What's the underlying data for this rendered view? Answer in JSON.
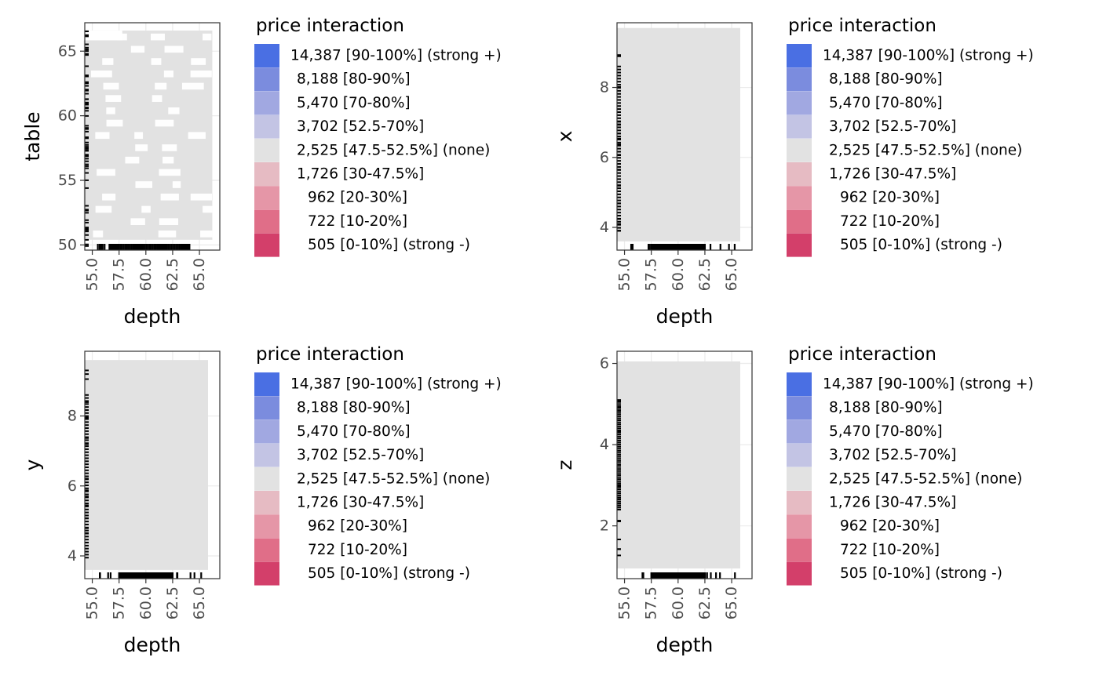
{
  "chart_data": [
    {
      "type": "heatmap",
      "title": "",
      "xlabel": "depth",
      "ylabel": "table",
      "x_ticks": [
        "55.0",
        "57.5",
        "60.0",
        "62.5",
        "65.0"
      ],
      "y_ticks": [
        "50",
        "55",
        "60",
        "65"
      ],
      "xlim": [
        54.3,
        66.9
      ],
      "ylim": [
        49.6,
        67.2
      ],
      "tile_range": {
        "x": [
          54.2,
          66.2
        ],
        "y": [
          50.4,
          66.6
        ]
      },
      "rug_x": {
        "range": [
          55.3,
          65.7
        ],
        "dense": [
          56.6,
          63.9
        ]
      },
      "rug_y": {
        "range": [
          49.9,
          66.7
        ],
        "dense": []
      },
      "tile_fill": "2,525 [47.5-52.5%] (none)",
      "legend": {
        "title": "price interaction",
        "items": [
          {
            "label": "14,387 [90-100%] (strong +)",
            "color": "#4a6fe3"
          },
          {
            "label": "8,188 [80-90%]",
            "color": "#7b8cde"
          },
          {
            "label": "5,470 [70-80%]",
            "color": "#a1a8e1"
          },
          {
            "label": "3,702 [52.5-70%]",
            "color": "#c3c4e4"
          },
          {
            "label": "2,525 [47.5-52.5%] (none)",
            "color": "#e2e2e2"
          },
          {
            "label": "1,726 [30-47.5%]",
            "color": "#e6bbc3"
          },
          {
            "label": "962 [20-30%]",
            "color": "#e596a7"
          },
          {
            "label": "722 [10-20%]",
            "color": "#e06e88"
          },
          {
            "label": "505 [0-10%] (strong -)",
            "color": "#d33f6a"
          }
        ]
      }
    },
    {
      "type": "heatmap",
      "title": "",
      "xlabel": "depth",
      "ylabel": "x",
      "x_ticks": [
        "55.0",
        "57.5",
        "60.0",
        "62.5",
        "65.0"
      ],
      "y_ticks": [
        "4",
        "6",
        "8"
      ],
      "xlim": [
        54.3,
        66.9
      ],
      "ylim": [
        3.35,
        9.85
      ],
      "tile_range": {
        "x": [
          54.3,
          65.8
        ],
        "y": [
          3.6,
          9.7
        ]
      },
      "rug_x": {
        "range": [
          55.4,
          65.7
        ],
        "dense": [
          57.5,
          62.5
        ]
      },
      "rug_y": {
        "range": [
          3.75,
          9.5
        ],
        "dense": [
          3.9,
          8.6
        ]
      },
      "tile_fill": "2,525 [47.5-52.5%] (none)",
      "legend": {
        "title": "price interaction",
        "items": [
          {
            "label": "14,387 [90-100%] (strong +)",
            "color": "#4a6fe3"
          },
          {
            "label": "8,188 [80-90%]",
            "color": "#7b8cde"
          },
          {
            "label": "5,470 [70-80%]",
            "color": "#a1a8e1"
          },
          {
            "label": "3,702 [52.5-70%]",
            "color": "#c3c4e4"
          },
          {
            "label": "2,525 [47.5-52.5%] (none)",
            "color": "#e2e2e2"
          },
          {
            "label": "1,726 [30-47.5%]",
            "color": "#e6bbc3"
          },
          {
            "label": "962 [20-30%]",
            "color": "#e596a7"
          },
          {
            "label": "722 [10-20%]",
            "color": "#e06e88"
          },
          {
            "label": "505 [0-10%] (strong -)",
            "color": "#d33f6a"
          }
        ]
      }
    },
    {
      "type": "heatmap",
      "title": "",
      "xlabel": "depth",
      "ylabel": "y",
      "x_ticks": [
        "55.0",
        "57.5",
        "60.0",
        "62.5",
        "65.0"
      ],
      "y_ticks": [
        "4",
        "6",
        "8"
      ],
      "xlim": [
        54.3,
        66.9
      ],
      "ylim": [
        3.35,
        9.85
      ],
      "tile_range": {
        "x": [
          54.3,
          65.8
        ],
        "y": [
          3.6,
          9.6
        ]
      },
      "rug_x": {
        "range": [
          55.4,
          65.7
        ],
        "dense": [
          57.5,
          62.5
        ]
      },
      "rug_y": {
        "range": [
          3.9,
          9.5
        ],
        "dense": [
          3.95,
          8.6
        ]
      },
      "tile_fill": "2,525 [47.5-52.5%] (none)",
      "legend": {
        "title": "price interaction",
        "items": [
          {
            "label": "14,387 [90-100%] (strong +)",
            "color": "#4a6fe3"
          },
          {
            "label": "8,188 [80-90%]",
            "color": "#7b8cde"
          },
          {
            "label": "5,470 [70-80%]",
            "color": "#a1a8e1"
          },
          {
            "label": "3,702 [52.5-70%]",
            "color": "#c3c4e4"
          },
          {
            "label": "2,525 [47.5-52.5%] (none)",
            "color": "#e2e2e2"
          },
          {
            "label": "1,726 [30-47.5%]",
            "color": "#e6bbc3"
          },
          {
            "label": "962 [20-30%]",
            "color": "#e596a7"
          },
          {
            "label": "722 [10-20%]",
            "color": "#e06e88"
          },
          {
            "label": "505 [0-10%] (strong -)",
            "color": "#d33f6a"
          }
        ]
      }
    },
    {
      "type": "heatmap",
      "title": "",
      "xlabel": "depth",
      "ylabel": "z",
      "x_ticks": [
        "55.0",
        "57.5",
        "60.0",
        "62.5",
        "65.0"
      ],
      "y_ticks": [
        "2",
        "4",
        "6"
      ],
      "xlim": [
        54.3,
        66.9
      ],
      "ylim": [
        0.7,
        6.3
      ],
      "tile_range": {
        "x": [
          54.3,
          65.8
        ],
        "y": [
          0.95,
          6.05
        ]
      },
      "rug_x": {
        "range": [
          55.4,
          65.7
        ],
        "dense": [
          57.5,
          62.5
        ]
      },
      "rug_y": {
        "range": [
          1.05,
          5.4
        ],
        "dense": [
          2.4,
          5.1
        ]
      },
      "tile_fill": "2,525 [47.5-52.5%] (none)",
      "legend": {
        "title": "price interaction",
        "items": [
          {
            "label": "14,387 [90-100%] (strong +)",
            "color": "#4a6fe3"
          },
          {
            "label": "8,188 [80-90%]",
            "color": "#7b8cde"
          },
          {
            "label": "5,470 [70-80%]",
            "color": "#a1a8e1"
          },
          {
            "label": "3,702 [52.5-70%]",
            "color": "#c3c4e4"
          },
          {
            "label": "2,525 [47.5-52.5%] (none)",
            "color": "#e2e2e2"
          },
          {
            "label": "1,726 [30-47.5%]",
            "color": "#e6bbc3"
          },
          {
            "label": "962 [20-30%]",
            "color": "#e596a7"
          },
          {
            "label": "722 [10-20%]",
            "color": "#e06e88"
          },
          {
            "label": "505 [0-10%] (strong -)",
            "color": "#d33f6a"
          }
        ]
      }
    }
  ]
}
